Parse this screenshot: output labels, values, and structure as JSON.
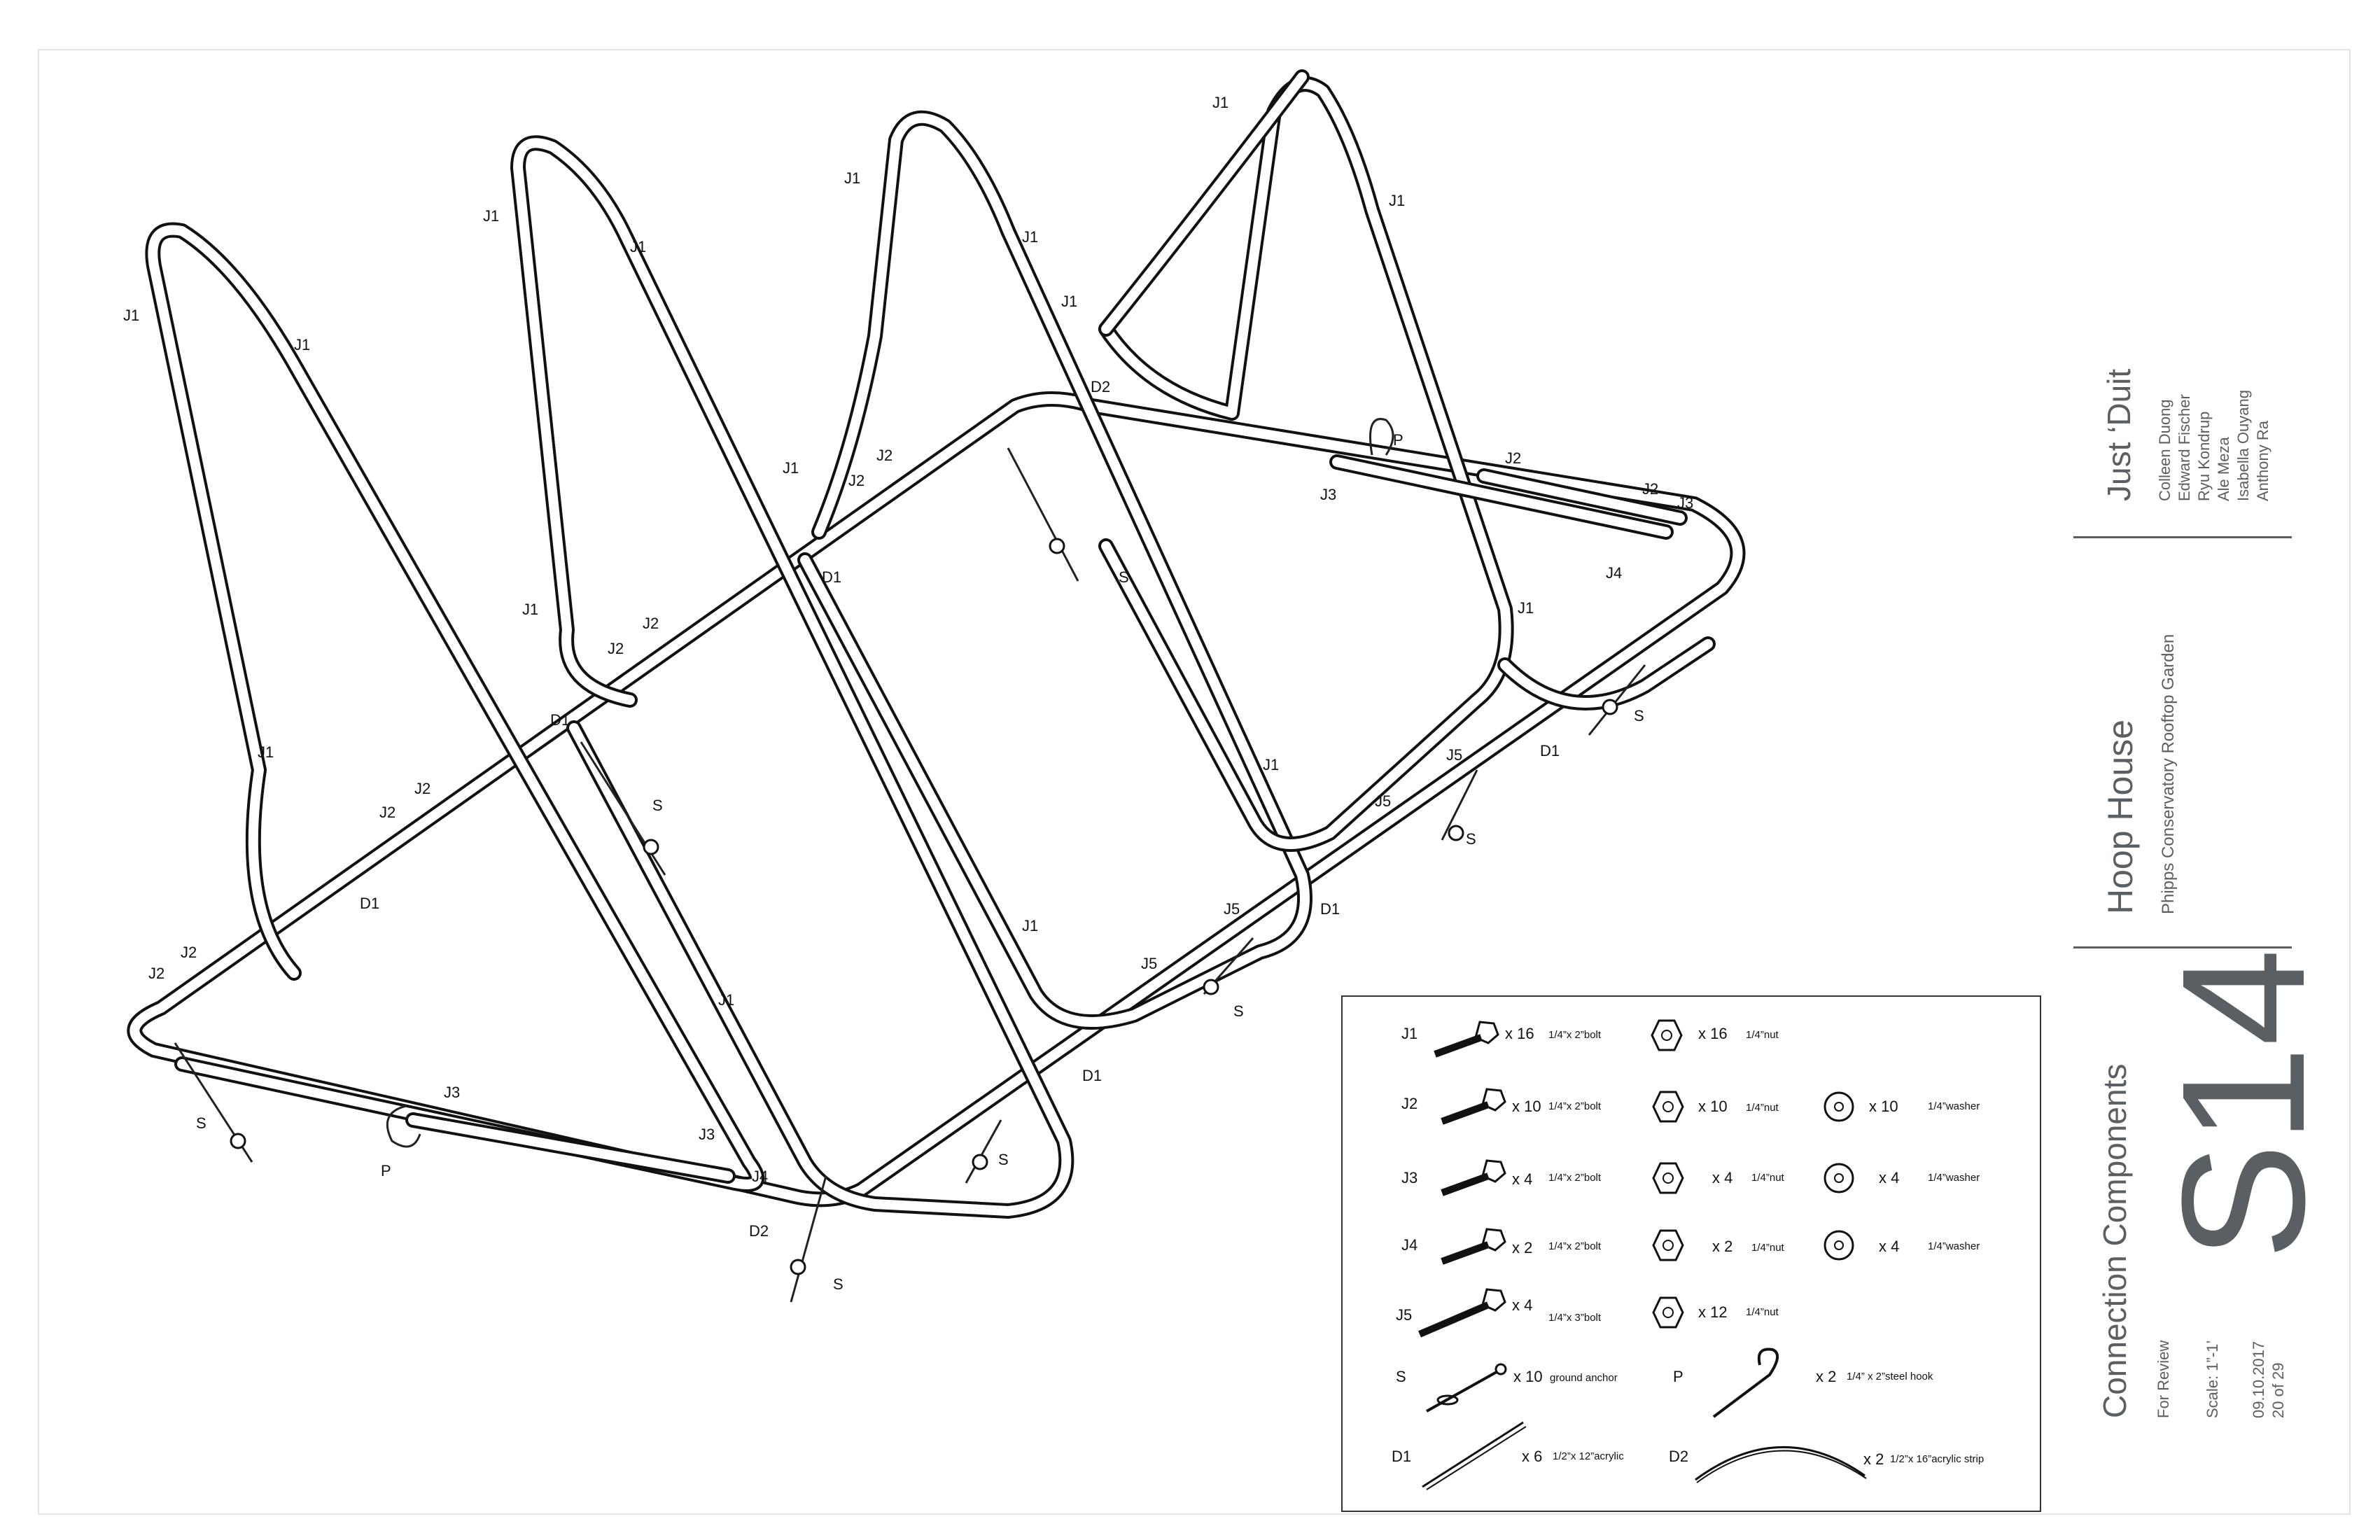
{
  "labels": {
    "J1": "J1",
    "J2": "J2",
    "J3": "J3",
    "J4": "J4",
    "J5": "J5",
    "D1": "D1",
    "D2": "D2",
    "S": "S",
    "P": "P"
  },
  "legend": {
    "rows": [
      {
        "code": "J1",
        "bolt_qty": "x 16",
        "bolt_desc": "1/4”x 2”bolt",
        "nut_qty": "x 16",
        "nut_desc": "1/4”nut",
        "washer_qty": "",
        "washer_desc": ""
      },
      {
        "code": "J2",
        "bolt_qty": "x 10",
        "bolt_desc": "1/4”x 2”bolt",
        "nut_qty": "x 10",
        "nut_desc": "1/4”nut",
        "washer_qty": "x 10",
        "washer_desc": "1/4”washer"
      },
      {
        "code": "J3",
        "bolt_qty": "x 4",
        "bolt_desc": "1/4”x 2”bolt",
        "nut_qty": "x 4",
        "nut_desc": "1/4”nut",
        "washer_qty": "x 4",
        "washer_desc": "1/4”washer"
      },
      {
        "code": "J4",
        "bolt_qty": "x 2",
        "bolt_desc": "1/4”x 2”bolt",
        "nut_qty": "x 2",
        "nut_desc": "1/4”nut",
        "washer_qty": "x 4",
        "washer_desc": "1/4”washer"
      },
      {
        "code": "J5",
        "bolt_qty": "x 4",
        "bolt_desc": "1/4”x 3”bolt",
        "nut_qty": "x 12",
        "nut_desc": "1/4”nut",
        "washer_qty": "",
        "washer_desc": ""
      }
    ],
    "S": {
      "code": "S",
      "qty": "x 10",
      "desc": "ground anchor"
    },
    "P": {
      "code": "P",
      "qty": "x 2",
      "desc": "1/4” x 2”steel hook"
    },
    "D1": {
      "code": "D1",
      "qty": "x 6",
      "desc": "1/2”x 12”acrylic"
    },
    "D2": {
      "code": "D2",
      "qty": "x 2",
      "desc": "1/2”x 16”acrylic strip"
    }
  },
  "title_block": {
    "team": "Just ‘Duit",
    "members": [
      "Colleen Duong",
      "Edward Fischer",
      "Ryu Kondrup",
      "Ale Meza",
      "Isabella Ouyang",
      "Anthony Ra"
    ],
    "project": "Hoop House",
    "client": "Phipps Conservatory Rooftop Garden",
    "sheet_title": "Connection Components",
    "sheet_number": "S14",
    "status": "For Review",
    "scale": "Scale: 1”-1’",
    "date": "09.10.2017",
    "page": "20 of 29"
  },
  "colors": {
    "ink": "#111111",
    "titleblock": "#5a5f63",
    "border": "#e4e4e4"
  }
}
